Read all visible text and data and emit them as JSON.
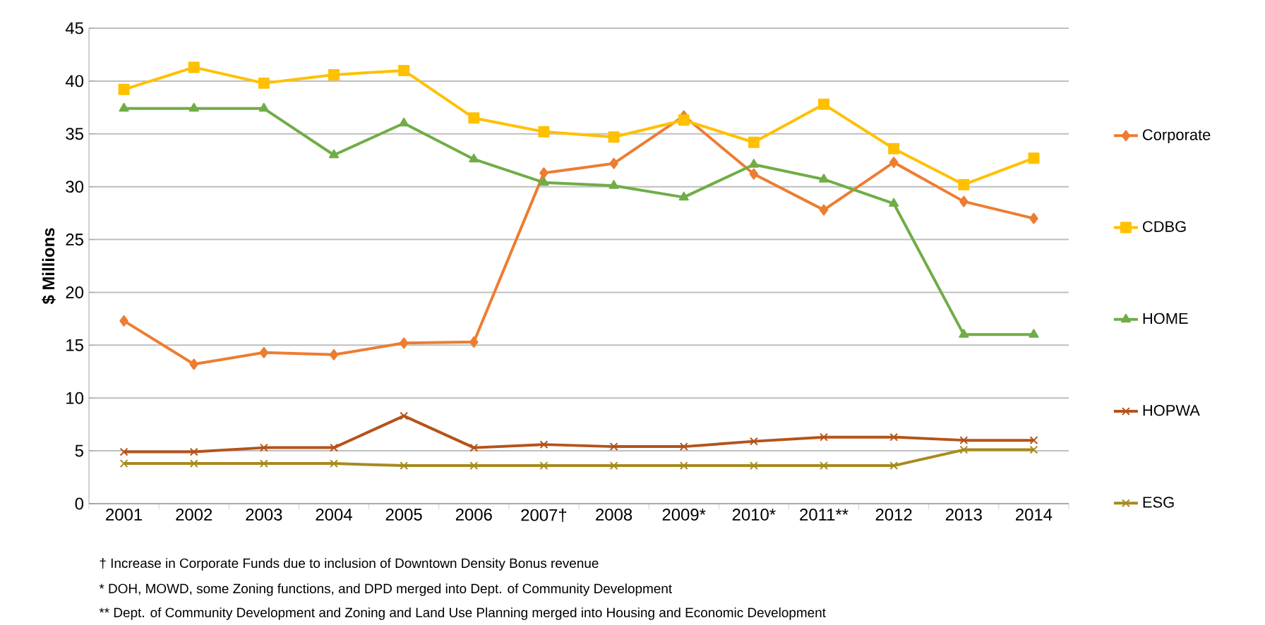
{
  "chart_data": {
    "type": "line",
    "ylabel": "$ Millions",
    "categories": [
      "2001",
      "2002",
      "2003",
      "2004",
      "2005",
      "2006",
      "2007†",
      "2008",
      "2009*",
      "2010*",
      "2011**",
      "2012",
      "2013",
      "2014"
    ],
    "series": [
      {
        "name": "Corporate",
        "color": "#ed7d31",
        "marker": "diamond",
        "values": [
          17.3,
          13.2,
          14.3,
          14.1,
          15.2,
          15.3,
          31.3,
          32.2,
          36.7,
          31.2,
          27.8,
          32.3,
          28.6,
          27.0
        ]
      },
      {
        "name": "CDBG",
        "color": "#ffc000",
        "marker": "square",
        "values": [
          39.2,
          41.3,
          39.8,
          40.6,
          41.0,
          36.5,
          35.2,
          34.7,
          36.3,
          34.2,
          37.8,
          33.6,
          30.2,
          32.7
        ]
      },
      {
        "name": "HOME",
        "color": "#70ad47",
        "marker": "triangle",
        "values": [
          37.4,
          37.4,
          37.4,
          33.0,
          36.0,
          32.6,
          30.4,
          30.1,
          29.0,
          32.1,
          30.7,
          28.4,
          16.0,
          16.0
        ]
      },
      {
        "name": "HOPWA",
        "color": "#b5531a",
        "marker": "cross",
        "values": [
          4.9,
          4.9,
          5.3,
          5.3,
          8.3,
          5.3,
          5.6,
          5.4,
          5.4,
          5.9,
          6.3,
          6.3,
          6.0,
          6.0
        ]
      },
      {
        "name": "ESG",
        "color": "#a88a1e",
        "marker": "cross",
        "values": [
          3.8,
          3.8,
          3.8,
          3.8,
          3.6,
          3.6,
          3.6,
          3.6,
          3.6,
          3.6,
          3.6,
          3.6,
          5.1,
          5.1
        ]
      }
    ],
    "ylim": [
      0,
      45
    ],
    "yticks": [
      0,
      5,
      10,
      15,
      20,
      25,
      30,
      35,
      40,
      45
    ],
    "grid": "y",
    "legend": "right",
    "line_style": "solid",
    "annotations": [
      "† Increase in Corporate Funds due to inclusion of Downtown Density Bonus revenue",
      "* DOH, MOWD, some Zoning functions, and DPD merged into Dept. of Community Development",
      "** Dept. of Community Development and Zoning and Land Use Planning merged into Housing and Economic Development"
    ]
  }
}
